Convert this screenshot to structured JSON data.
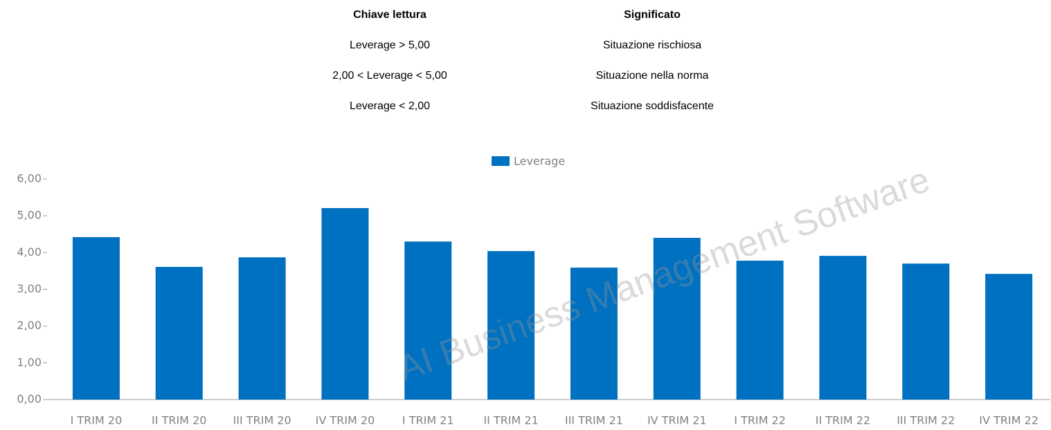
{
  "table": {
    "header": [
      "Chiave lettura",
      "Significato"
    ],
    "rows": [
      [
        "Leverage > 5,00",
        "Situazione rischiosa"
      ],
      [
        "2,00 < Leverage < 5,00",
        "Situazione nella norma"
      ],
      [
        "Leverage < 2,00",
        "Situazione soddisfacente"
      ]
    ]
  },
  "watermark": "AI Business Management Software",
  "chart_data": {
    "type": "bar",
    "categories": [
      "I TRIM 20",
      "II TRIM 20",
      "III TRIM 20",
      "IV TRIM 20",
      "I TRIM 21",
      "II TRIM 21",
      "III TRIM 21",
      "IV TRIM 21",
      "I TRIM 22",
      "II TRIM 22",
      "III TRIM 22",
      "IV TRIM 22"
    ],
    "series": [
      {
        "name": "Leverage",
        "color": "#0070c0",
        "values": [
          4.42,
          3.61,
          3.87,
          5.21,
          4.3,
          4.04,
          3.59,
          4.4,
          3.78,
          3.91,
          3.7,
          3.42
        ]
      }
    ],
    "ylim": [
      0,
      6
    ],
    "yticks": [
      {
        "value": 0,
        "label": "0,00"
      },
      {
        "value": 1,
        "label": "1,00"
      },
      {
        "value": 2,
        "label": "2,00"
      },
      {
        "value": 3,
        "label": "3,00"
      },
      {
        "value": 4,
        "label": "4,00"
      },
      {
        "value": 5,
        "label": "5,00"
      },
      {
        "value": 6,
        "label": "6,00"
      }
    ],
    "grid": false,
    "legend": "top"
  }
}
